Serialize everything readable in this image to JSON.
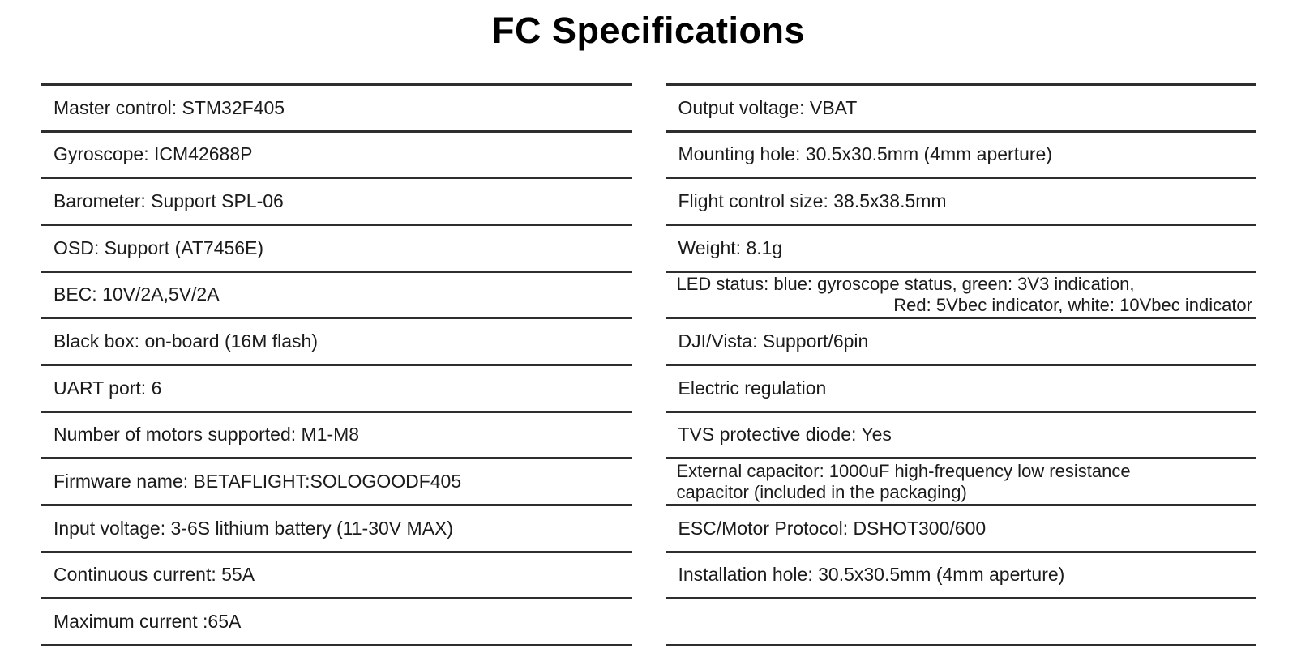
{
  "page": {
    "title": "FC Specifications"
  },
  "colors": {
    "background": "#ffffff",
    "text": "#1b1b1b",
    "divider": "#2e2e2e"
  },
  "spec_table": {
    "left_column": {
      "rows": [
        {
          "lines": [
            "Master control: STM32F405"
          ]
        },
        {
          "lines": [
            "Gyroscope: ICM42688P"
          ]
        },
        {
          "lines": [
            "Barometer: Support SPL-06"
          ]
        },
        {
          "lines": [
            "OSD: Support (AT7456E)"
          ]
        },
        {
          "lines": [
            "BEC: 10V/2A,5V/2A"
          ]
        },
        {
          "lines": [
            "Black box: on-board (16M flash)"
          ]
        },
        {
          "lines": [
            "UART port: 6"
          ]
        },
        {
          "lines": [
            "Number of motors supported: M1-M8"
          ]
        },
        {
          "lines": [
            "Firmware name: BETAFLIGHT:SOLOGOODF405"
          ]
        },
        {
          "lines": [
            "Input voltage: 3-6S lithium battery (11-30V MAX)"
          ]
        },
        {
          "lines": [
            "Continuous current: 55A"
          ]
        },
        {
          "lines": [
            "Maximum current :65A"
          ]
        }
      ]
    },
    "right_column": {
      "rows": [
        {
          "lines": [
            "Output voltage: VBAT"
          ]
        },
        {
          "lines": [
            "Mounting hole: 30.5x30.5mm (4mm aperture)"
          ]
        },
        {
          "lines": [
            "Flight control size: 38.5x38.5mm"
          ]
        },
        {
          "lines": [
            "Weight: 8.1g"
          ]
        },
        {
          "lines": [
            "LED status: blue: gyroscope status, green: 3V3 indication,",
            "Red: 5Vbec indicator, white: 10Vbec indicator"
          ],
          "second_line_align": "right"
        },
        {
          "lines": [
            "DJI/Vista: Support/6pin"
          ]
        },
        {
          "lines": [
            "Electric regulation"
          ]
        },
        {
          "lines": [
            "TVS protective diode: Yes"
          ]
        },
        {
          "lines": [
            "External capacitor: 1000uF high-frequency low resistance",
            "capacitor (included in the packaging)"
          ],
          "second_line_align": "left"
        },
        {
          "lines": [
            "ESC/Motor Protocol: DSHOT300/600"
          ]
        },
        {
          "lines": [
            "Installation hole: 30.5x30.5mm (4mm aperture)"
          ]
        },
        {
          "lines": []
        }
      ]
    }
  }
}
